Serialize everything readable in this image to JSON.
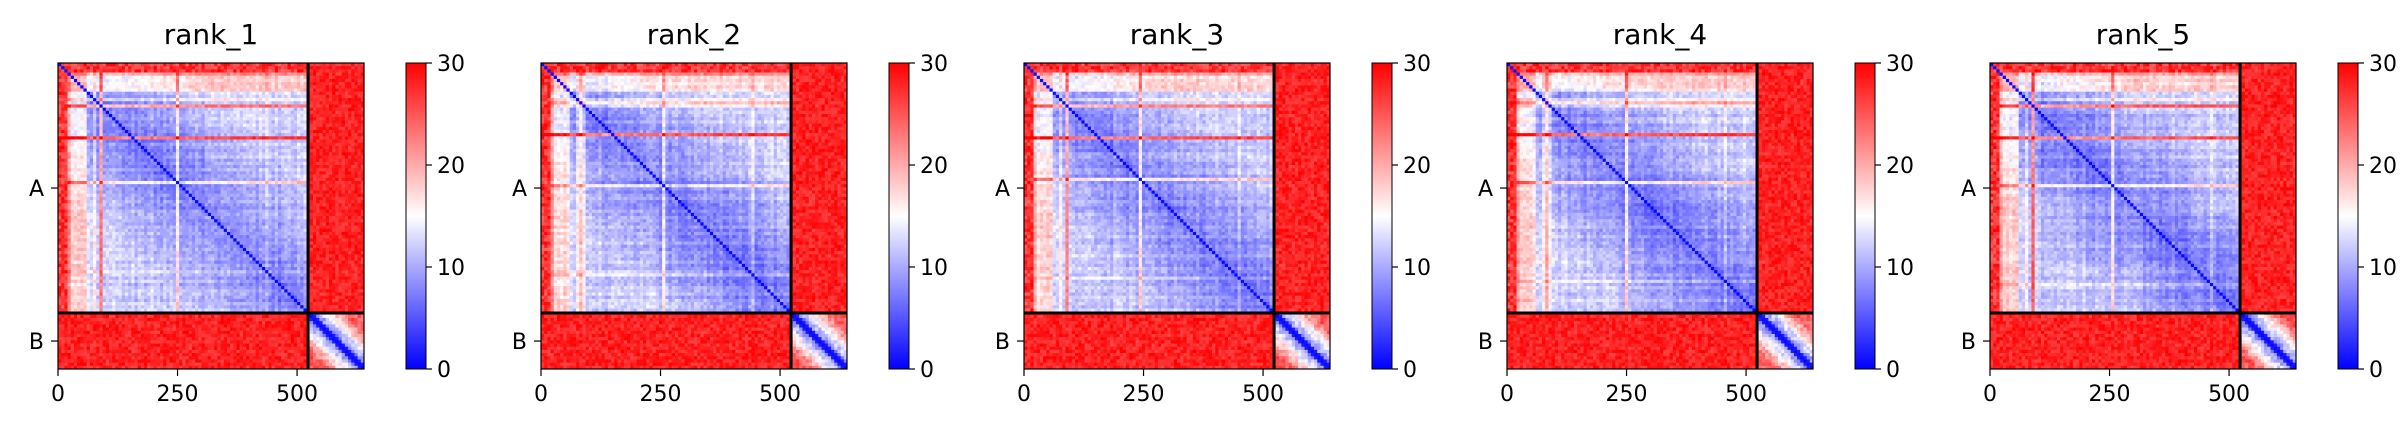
{
  "chart_data": [
    {
      "type": "heatmap",
      "title": "rank_1",
      "xticks": [
        0,
        250,
        500
      ],
      "xlim": [
        0,
        640
      ],
      "chain_boundary": 523,
      "yticklabels": [
        "A",
        "B"
      ],
      "colorbar": {
        "ticks": [
          0,
          10,
          20,
          30
        ],
        "range": [
          0,
          30
        ],
        "colors": [
          "#0000ff",
          "#ffffff",
          "#ff0000"
        ]
      },
      "variant": 1
    },
    {
      "type": "heatmap",
      "title": "rank_2",
      "xticks": [
        0,
        250,
        500
      ],
      "xlim": [
        0,
        640
      ],
      "chain_boundary": 523,
      "yticklabels": [
        "A",
        "B"
      ],
      "colorbar": {
        "ticks": [
          0,
          10,
          20,
          30
        ],
        "range": [
          0,
          30
        ],
        "colors": [
          "#0000ff",
          "#ffffff",
          "#ff0000"
        ]
      },
      "variant": 2
    },
    {
      "type": "heatmap",
      "title": "rank_3",
      "xticks": [
        0,
        250,
        500
      ],
      "xlim": [
        0,
        640
      ],
      "chain_boundary": 523,
      "yticklabels": [
        "A",
        "B"
      ],
      "colorbar": {
        "ticks": [
          0,
          10,
          20,
          30
        ],
        "range": [
          0,
          30
        ],
        "colors": [
          "#0000ff",
          "#ffffff",
          "#ff0000"
        ]
      },
      "variant": 3
    },
    {
      "type": "heatmap",
      "title": "rank_4",
      "xticks": [
        0,
        250,
        500
      ],
      "xlim": [
        0,
        640
      ],
      "chain_boundary": 523,
      "yticklabels": [
        "A",
        "B"
      ],
      "colorbar": {
        "ticks": [
          0,
          10,
          20,
          30
        ],
        "range": [
          0,
          30
        ],
        "colors": [
          "#0000ff",
          "#ffffff",
          "#ff0000"
        ]
      },
      "variant": 4
    },
    {
      "type": "heatmap",
      "title": "rank_5",
      "xticks": [
        0,
        250,
        500
      ],
      "xlim": [
        0,
        640
      ],
      "chain_boundary": 523,
      "yticklabels": [
        "A",
        "B"
      ],
      "colorbar": {
        "ticks": [
          0,
          10,
          20,
          30
        ],
        "range": [
          0,
          30
        ],
        "colors": [
          "#0000ff",
          "#ffffff",
          "#ff0000"
        ]
      },
      "variant": 5
    }
  ]
}
